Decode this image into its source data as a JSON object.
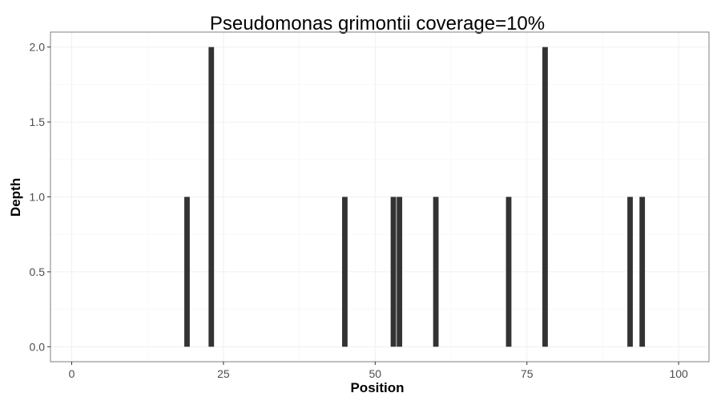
{
  "chart_data": {
    "type": "bar",
    "title": "Pseudomonas grimontii coverage=10%",
    "xlabel": "Position",
    "ylabel": "Depth",
    "x": [
      19,
      23,
      45,
      53,
      54,
      60,
      72,
      78,
      92,
      94
    ],
    "values": [
      1,
      2,
      1,
      1,
      1,
      1,
      1,
      2,
      1,
      1
    ],
    "xlim": [
      -3.5,
      105
    ],
    "ylim": [
      -0.1,
      2.1
    ],
    "xticks": [
      0,
      25,
      50,
      75,
      100
    ],
    "yticks": [
      0.0,
      0.5,
      1.0,
      1.5,
      2.0
    ],
    "xtick_labels": [
      "0",
      "25",
      "50",
      "75",
      "100"
    ],
    "ytick_labels": [
      "0.0",
      "0.5",
      "1.0",
      "1.5",
      "2.0"
    ],
    "grid": true,
    "bar_color": "#333333",
    "panel_border_color": "#7f7f7f",
    "grid_major_color": "#f0f0f0",
    "grid_minor_color": "#f7f7f7"
  }
}
